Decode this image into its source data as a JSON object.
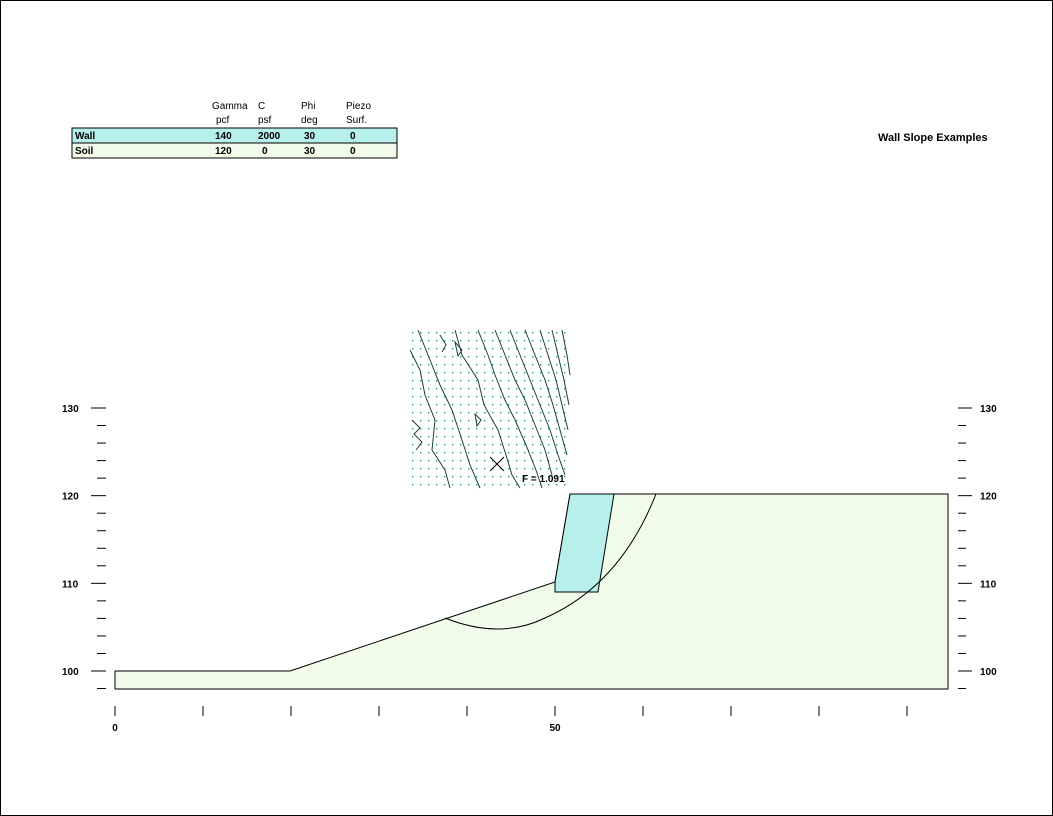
{
  "title": "Wall Slope Examples",
  "material_table": {
    "headers": [
      {
        "line1": "Gamma",
        "line2": "pcf"
      },
      {
        "line1": "C",
        "line2": "psf"
      },
      {
        "line1": "Phi",
        "line2": "deg"
      },
      {
        "line1": "Piezo",
        "line2": "Surf."
      }
    ],
    "rows": [
      {
        "name": "Wall",
        "gamma": "140",
        "c": "2000",
        "phi": "30",
        "piezo": "0",
        "color": "#b7efea"
      },
      {
        "name": "Soil",
        "gamma": "120",
        "c": "0",
        "phi": "30",
        "piezo": "0",
        "color": "#f0fbe9"
      }
    ]
  },
  "y_axis": {
    "labels": [
      "130",
      "120",
      "110",
      "100"
    ],
    "values": [
      130,
      120,
      110,
      100
    ],
    "range": [
      98,
      132
    ]
  },
  "x_axis": {
    "labels": [
      "0",
      "50"
    ],
    "values": [
      0,
      50
    ]
  },
  "factor_of_safety_label": "F = 1.091",
  "critical_center_marker": "x-mark-icon",
  "colors": {
    "wall": "#b7efea",
    "soil": "#f0fbe9",
    "contour": "#1f3f3f",
    "grid_points": "#1a9a8a"
  }
}
